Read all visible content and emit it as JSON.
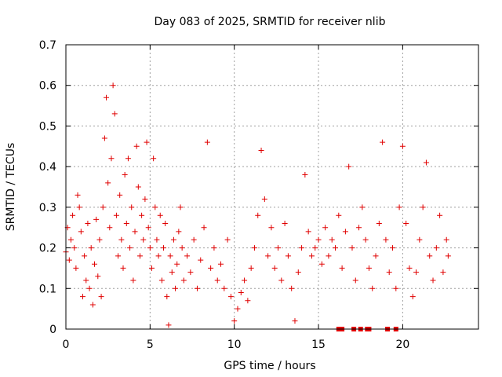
{
  "chart_data": {
    "type": "scatter",
    "title": "Day 083 of 2025, SRMTID for receiver nlib",
    "xlabel": "GPS time / hours",
    "ylabel": "SRMTID / TECUs",
    "xlim": [
      0,
      24.5
    ],
    "ylim": [
      0,
      0.7
    ],
    "x_ticks": [
      0,
      5,
      10,
      15,
      20
    ],
    "x_tick_labels": [
      "0",
      "5",
      "10",
      "15",
      "20"
    ],
    "y_ticks": [
      0,
      0.1,
      0.2,
      0.3,
      0.4,
      0.5,
      0.6,
      0.7
    ],
    "y_tick_labels": [
      "0",
      "0.1",
      "0.2",
      "0.3",
      "0.4",
      "0.5",
      "0.6",
      "0.7"
    ],
    "grid": true,
    "marker": "plus",
    "color": "#e00000",
    "series": [
      {
        "name": "SRMTID",
        "points": [
          [
            0.0,
            0.19
          ],
          [
            0.1,
            0.25
          ],
          [
            0.2,
            0.17
          ],
          [
            0.3,
            0.22
          ],
          [
            0.4,
            0.28
          ],
          [
            0.5,
            0.2
          ],
          [
            0.6,
            0.15
          ],
          [
            0.7,
            0.33
          ],
          [
            0.8,
            0.3
          ],
          [
            0.9,
            0.24
          ],
          [
            1.0,
            0.08
          ],
          [
            1.1,
            0.18
          ],
          [
            1.2,
            0.12
          ],
          [
            1.3,
            0.26
          ],
          [
            1.4,
            0.1
          ],
          [
            1.5,
            0.2
          ],
          [
            1.6,
            0.06
          ],
          [
            1.7,
            0.16
          ],
          [
            1.8,
            0.27
          ],
          [
            1.9,
            0.13
          ],
          [
            2.0,
            0.22
          ],
          [
            2.1,
            0.08
          ],
          [
            2.2,
            0.3
          ],
          [
            2.3,
            0.47
          ],
          [
            2.4,
            0.57
          ],
          [
            2.5,
            0.36
          ],
          [
            2.6,
            0.25
          ],
          [
            2.7,
            0.42
          ],
          [
            2.8,
            0.6
          ],
          [
            2.9,
            0.53
          ],
          [
            3.0,
            0.28
          ],
          [
            3.1,
            0.18
          ],
          [
            3.2,
            0.33
          ],
          [
            3.3,
            0.22
          ],
          [
            3.4,
            0.15
          ],
          [
            3.5,
            0.38
          ],
          [
            3.6,
            0.26
          ],
          [
            3.7,
            0.42
          ],
          [
            3.8,
            0.2
          ],
          [
            3.9,
            0.3
          ],
          [
            4.0,
            0.12
          ],
          [
            4.1,
            0.24
          ],
          [
            4.2,
            0.45
          ],
          [
            4.3,
            0.35
          ],
          [
            4.4,
            0.18
          ],
          [
            4.5,
            0.28
          ],
          [
            4.6,
            0.22
          ],
          [
            4.7,
            0.32
          ],
          [
            4.8,
            0.46
          ],
          [
            4.9,
            0.25
          ],
          [
            5.0,
            0.2
          ],
          [
            5.1,
            0.15
          ],
          [
            5.2,
            0.42
          ],
          [
            5.3,
            0.3
          ],
          [
            5.4,
            0.22
          ],
          [
            5.5,
            0.18
          ],
          [
            5.6,
            0.28
          ],
          [
            5.7,
            0.12
          ],
          [
            5.8,
            0.2
          ],
          [
            5.9,
            0.26
          ],
          [
            6.0,
            0.08
          ],
          [
            6.1,
            0.01
          ],
          [
            6.2,
            0.18
          ],
          [
            6.3,
            0.14
          ],
          [
            6.4,
            0.22
          ],
          [
            6.5,
            0.1
          ],
          [
            6.6,
            0.16
          ],
          [
            6.7,
            0.24
          ],
          [
            6.8,
            0.3
          ],
          [
            6.9,
            0.2
          ],
          [
            7.0,
            0.12
          ],
          [
            7.2,
            0.18
          ],
          [
            7.4,
            0.14
          ],
          [
            7.6,
            0.22
          ],
          [
            7.8,
            0.1
          ],
          [
            8.0,
            0.17
          ],
          [
            8.2,
            0.25
          ],
          [
            8.4,
            0.46
          ],
          [
            8.6,
            0.15
          ],
          [
            8.8,
            0.2
          ],
          [
            9.0,
            0.12
          ],
          [
            9.2,
            0.16
          ],
          [
            9.4,
            0.1
          ],
          [
            9.6,
            0.22
          ],
          [
            9.8,
            0.08
          ],
          [
            10.0,
            0.02
          ],
          [
            10.2,
            0.05
          ],
          [
            10.4,
            0.09
          ],
          [
            10.6,
            0.12
          ],
          [
            10.8,
            0.07
          ],
          [
            11.0,
            0.15
          ],
          [
            11.2,
            0.2
          ],
          [
            11.4,
            0.28
          ],
          [
            11.6,
            0.44
          ],
          [
            11.8,
            0.32
          ],
          [
            12.0,
            0.18
          ],
          [
            12.2,
            0.25
          ],
          [
            12.4,
            0.15
          ],
          [
            12.6,
            0.2
          ],
          [
            12.8,
            0.12
          ],
          [
            13.0,
            0.26
          ],
          [
            13.2,
            0.18
          ],
          [
            13.4,
            0.1
          ],
          [
            13.6,
            0.02
          ],
          [
            13.8,
            0.14
          ],
          [
            14.0,
            0.2
          ],
          [
            14.2,
            0.38
          ],
          [
            14.4,
            0.24
          ],
          [
            14.6,
            0.18
          ],
          [
            14.8,
            0.2
          ],
          [
            15.0,
            0.22
          ],
          [
            15.2,
            0.16
          ],
          [
            15.4,
            0.25
          ],
          [
            15.6,
            0.18
          ],
          [
            15.8,
            0.22
          ],
          [
            16.0,
            0.2
          ],
          [
            16.2,
            0.28
          ],
          [
            16.4,
            0.15
          ],
          [
            16.6,
            0.24
          ],
          [
            16.8,
            0.4
          ],
          [
            17.0,
            0.2
          ],
          [
            17.2,
            0.12
          ],
          [
            17.4,
            0.25
          ],
          [
            17.6,
            0.3
          ],
          [
            17.8,
            0.22
          ],
          [
            18.0,
            0.15
          ],
          [
            18.2,
            0.1
          ],
          [
            18.4,
            0.18
          ],
          [
            18.6,
            0.26
          ],
          [
            18.8,
            0.46
          ],
          [
            19.0,
            0.22
          ],
          [
            19.2,
            0.14
          ],
          [
            19.4,
            0.2
          ],
          [
            19.6,
            0.1
          ],
          [
            19.8,
            0.3
          ],
          [
            20.0,
            0.45
          ],
          [
            20.2,
            0.26
          ],
          [
            20.4,
            0.15
          ],
          [
            20.6,
            0.08
          ],
          [
            20.8,
            0.14
          ],
          [
            21.0,
            0.22
          ],
          [
            21.2,
            0.3
          ],
          [
            21.4,
            0.41
          ],
          [
            21.6,
            0.18
          ],
          [
            21.8,
            0.12
          ],
          [
            22.0,
            0.2
          ],
          [
            22.2,
            0.28
          ],
          [
            22.4,
            0.14
          ],
          [
            22.6,
            0.22
          ],
          [
            22.7,
            0.18
          ]
        ]
      }
    ],
    "zero_markers": [
      16.2,
      16.4,
      17.1,
      17.5,
      17.9,
      18.0,
      19.1,
      19.6
    ]
  }
}
